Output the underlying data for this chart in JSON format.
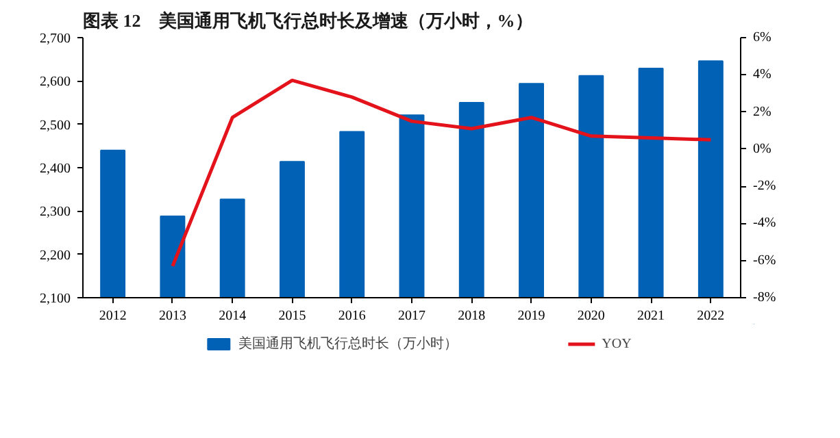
{
  "chart_data": {
    "type": "bar",
    "title": "图表 12　美国通用飞机飞行总时长及增速（万小时，%）",
    "categories": [
      "2012",
      "2013",
      "2014",
      "2015",
      "2016",
      "2017",
      "2018",
      "2019",
      "2020",
      "2021",
      "2022"
    ],
    "series": [
      {
        "name": "美国通用飞机飞行总时长（万小时）",
        "color": "#0061b5",
        "values": [
          2440,
          2288,
          2327,
          2414,
          2483,
          2521,
          2550,
          2594,
          2612,
          2629,
          2646
        ]
      },
      {
        "name": "YOY",
        "type": "line",
        "axis": "y2",
        "color": "#e3121b",
        "values": [
          null,
          -6.3,
          1.7,
          3.7,
          2.8,
          1.5,
          1.1,
          1.7,
          0.7,
          0.6,
          0.5
        ]
      }
    ],
    "ylim": [
      2100,
      2700
    ],
    "yticks": [
      {
        "value": 2100,
        "label": "2,100"
      },
      {
        "value": 2200,
        "label": "2,200"
      },
      {
        "value": 2300,
        "label": "2,300"
      },
      {
        "value": 2400,
        "label": "2,400"
      },
      {
        "value": 2500,
        "label": "2,500"
      },
      {
        "value": 2600,
        "label": "2,600"
      },
      {
        "value": 2700,
        "label": "2,700"
      }
    ],
    "y2lim": [
      -8,
      6
    ],
    "y2ticks": [
      {
        "value": -8,
        "label": "-8%"
      },
      {
        "value": -6,
        "label": "-6%"
      },
      {
        "value": -4,
        "label": "-4%"
      },
      {
        "value": -2,
        "label": "-2%"
      },
      {
        "value": 0,
        "label": "0%"
      },
      {
        "value": 2,
        "label": "2%"
      },
      {
        "value": 4,
        "label": "4%"
      },
      {
        "value": 6,
        "label": "6%"
      }
    ],
    "grid": false,
    "legend": "bottom",
    "marker": "none",
    "line_style": "solid"
  }
}
